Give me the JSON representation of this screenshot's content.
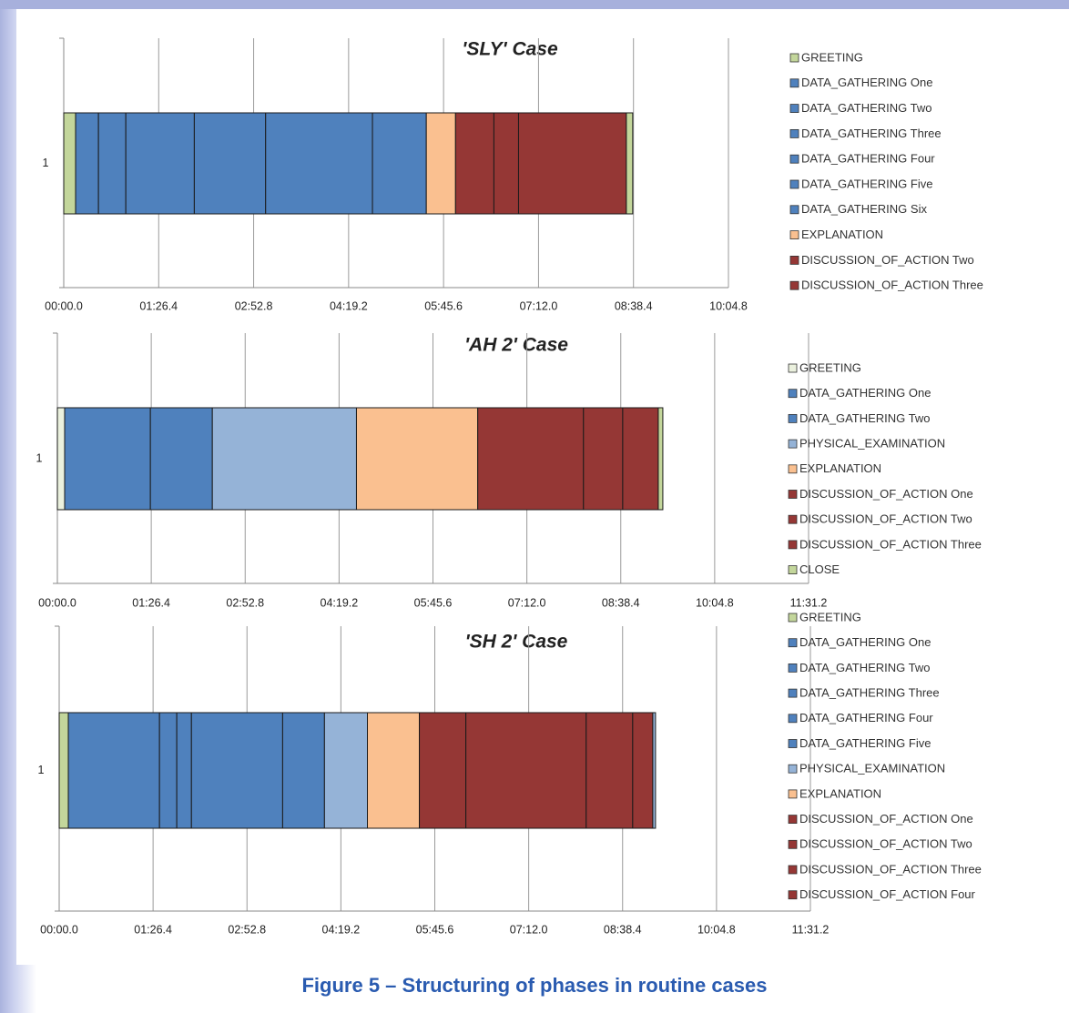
{
  "caption": "Figure 5 – Structuring of phases in routine cases",
  "chart_data": [
    {
      "type": "stacked-bar-horizontal",
      "title": "'SLY' Case",
      "categories": [
        "1"
      ],
      "xlim": [
        0,
        604.8
      ],
      "xticks": [
        {
          "value": 0,
          "label": "00:00.0"
        },
        {
          "value": 86.4,
          "label": "01:26.4"
        },
        {
          "value": 172.8,
          "label": "02:52.8"
        },
        {
          "value": 259.2,
          "label": "04:19.2"
        },
        {
          "value": 345.6,
          "label": "05:45.6"
        },
        {
          "value": 432,
          "label": "07:12.0"
        },
        {
          "value": 518.4,
          "label": "08:38.4"
        },
        {
          "value": 604.8,
          "label": "10:04.8"
        }
      ],
      "grid": true,
      "series": [
        {
          "name": "GREETING",
          "color": "#c3d69b",
          "values": [
            10.8
          ]
        },
        {
          "name": "DATA_GATHERING One",
          "color": "#4f81bd",
          "values": [
            20.8
          ]
        },
        {
          "name": "DATA_GATHERING Two",
          "color": "#4f81bd",
          "values": [
            24.9
          ]
        },
        {
          "name": "DATA_GATHERING Three",
          "color": "#4f81bd",
          "values": [
            62.3
          ]
        },
        {
          "name": "DATA_GATHERING Four",
          "color": "#4f81bd",
          "values": [
            64.9
          ]
        },
        {
          "name": "DATA_GATHERING Five",
          "color": "#4f81bd",
          "values": [
            97.2
          ]
        },
        {
          "name": "DATA_GATHERING Six",
          "color": "#4f81bd",
          "values": [
            49.0
          ]
        },
        {
          "name": "EXPLANATION",
          "color": "#fac090",
          "values": [
            26.6
          ]
        },
        {
          "name": null,
          "color": "#953735",
          "values": [
            34.9
          ]
        },
        {
          "name": "DISCUSSION_OF_ACTION Two",
          "color": "#953735",
          "values": [
            22.4
          ]
        },
        {
          "name": "DISCUSSION_OF_ACTION Three",
          "color": "#953735",
          "values": [
            98.1
          ]
        },
        {
          "name": null,
          "color": "#c3d69b",
          "values": [
            5.8
          ]
        }
      ]
    },
    {
      "type": "stacked-bar-horizontal",
      "title": "'AH 2' Case",
      "categories": [
        "1"
      ],
      "xlim": [
        0,
        691.2
      ],
      "xticks": [
        {
          "value": 0,
          "label": "00:00.0"
        },
        {
          "value": 86.4,
          "label": "01:26.4"
        },
        {
          "value": 172.8,
          "label": "02:52.8"
        },
        {
          "value": 259.2,
          "label": "04:19.2"
        },
        {
          "value": 345.6,
          "label": "05:45.6"
        },
        {
          "value": 432,
          "label": "07:12.0"
        },
        {
          "value": 518.4,
          "label": "08:38.4"
        },
        {
          "value": 604.8,
          "label": "10:04.8"
        },
        {
          "value": 691.2,
          "label": "11:31.2"
        }
      ],
      "grid": true,
      "series": [
        {
          "name": "GREETING",
          "color": "#ebf1de",
          "values": [
            6.7
          ]
        },
        {
          "name": "DATA_GATHERING One",
          "color": "#4f81bd",
          "values": [
            78.9
          ]
        },
        {
          "name": "DATA_GATHERING Two",
          "color": "#4f81bd",
          "values": [
            57.0
          ]
        },
        {
          "name": "PHYSICAL_EXAMINATION",
          "color": "#95b3d7",
          "values": [
            132.6
          ]
        },
        {
          "name": "EXPLANATION",
          "color": "#fac090",
          "values": [
            111.6
          ]
        },
        {
          "name": "DISCUSSION_OF_ACTION One",
          "color": "#953735",
          "values": [
            97.3
          ]
        },
        {
          "name": "DISCUSSION_OF_ACTION Two",
          "color": "#953735",
          "values": [
            36.1
          ]
        },
        {
          "name": "DISCUSSION_OF_ACTION Three",
          "color": "#953735",
          "values": [
            32.7
          ]
        },
        {
          "name": "CLOSE",
          "color": "#c3d69b",
          "values": [
            4.2
          ]
        }
      ]
    },
    {
      "type": "stacked-bar-horizontal",
      "title": "'SH 2' Case",
      "categories": [
        "1"
      ],
      "xlim": [
        0,
        691.2
      ],
      "xticks": [
        {
          "value": 0,
          "label": "00:00.0"
        },
        {
          "value": 86.4,
          "label": "01:26.4"
        },
        {
          "value": 172.8,
          "label": "02:52.8"
        },
        {
          "value": 259.2,
          "label": "04:19.2"
        },
        {
          "value": 345.6,
          "label": "05:45.6"
        },
        {
          "value": 432,
          "label": "07:12.0"
        },
        {
          "value": 518.4,
          "label": "08:38.4"
        },
        {
          "value": 604.8,
          "label": "10:04.8"
        },
        {
          "value": 691.2,
          "label": "11:31.2"
        }
      ],
      "grid": true,
      "series": [
        {
          "name": "GREETING",
          "color": "#c3d69b",
          "values": [
            8.4
          ]
        },
        {
          "name": "DATA_GATHERING One",
          "color": "#4f81bd",
          "values": [
            83.9
          ]
        },
        {
          "name": "DATA_GATHERING Two",
          "color": "#4f81bd",
          "values": [
            15.9
          ]
        },
        {
          "name": "DATA_GATHERING Three",
          "color": "#4f81bd",
          "values": [
            13.5
          ]
        },
        {
          "name": "DATA_GATHERING Four",
          "color": "#4f81bd",
          "values": [
            83.9
          ]
        },
        {
          "name": "DATA_GATHERING Five",
          "color": "#4f81bd",
          "values": [
            38.5
          ]
        },
        {
          "name": "PHYSICAL_EXAMINATION",
          "color": "#95b3d7",
          "values": [
            39.5
          ]
        },
        {
          "name": "EXPLANATION",
          "color": "#fac090",
          "values": [
            47.8
          ]
        },
        {
          "name": "DISCUSSION_OF_ACTION One",
          "color": "#953735",
          "values": [
            42.8
          ]
        },
        {
          "name": "DISCUSSION_OF_ACTION Two",
          "color": "#953735",
          "values": [
            110.7
          ]
        },
        {
          "name": "DISCUSSION_OF_ACTION Three",
          "color": "#953735",
          "values": [
            42.8
          ]
        },
        {
          "name": "DISCUSSION_OF_ACTION Four",
          "color": "#953735",
          "values": [
            18.5
          ]
        },
        {
          "name": null,
          "color": "#95b3d7",
          "values": [
            2.5
          ]
        }
      ]
    }
  ]
}
